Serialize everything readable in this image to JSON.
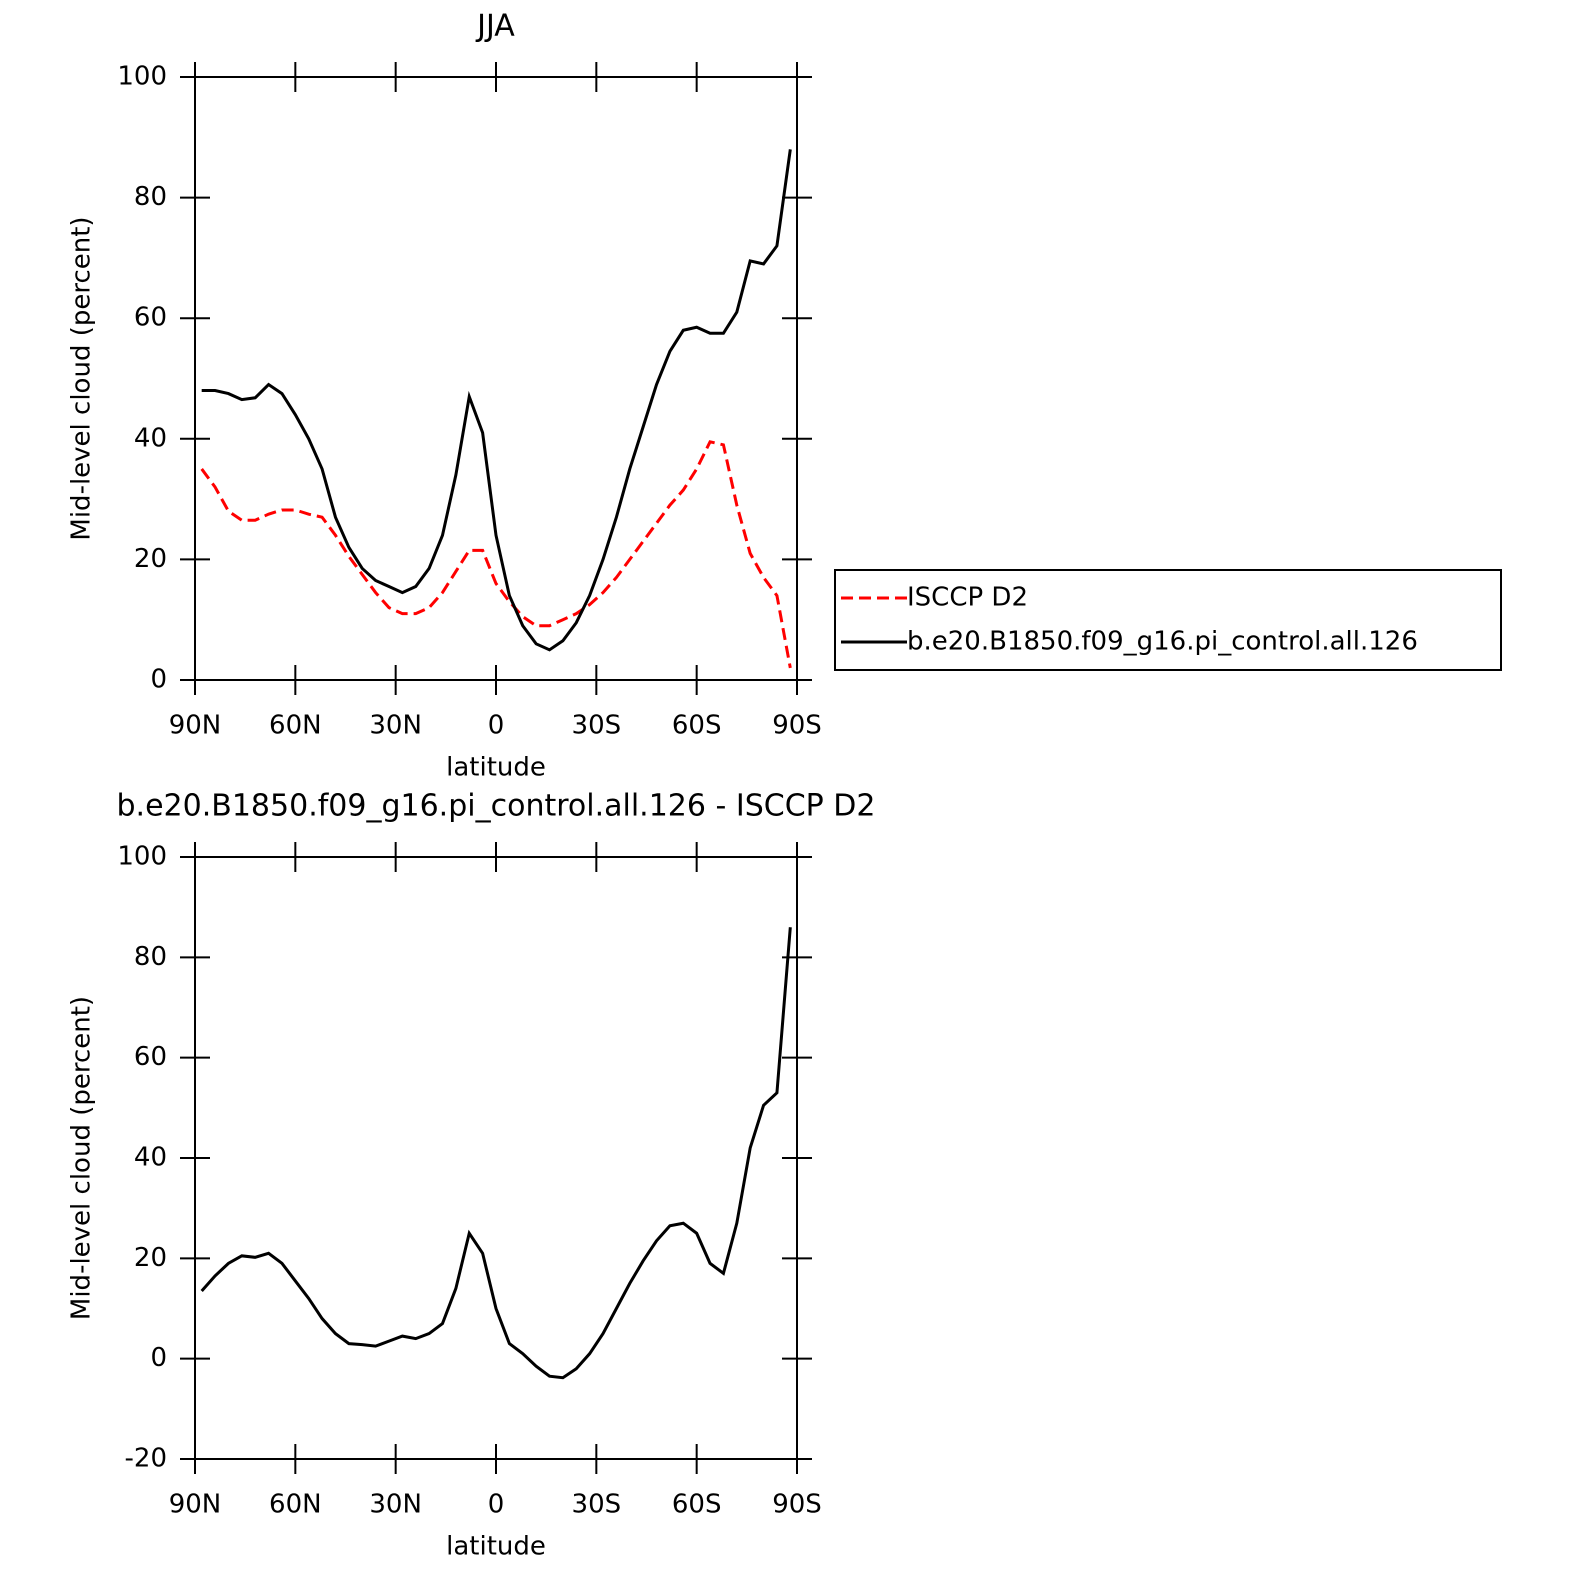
{
  "chart_data": [
    {
      "type": "line",
      "title": "JJA",
      "xlabel": "latitude",
      "ylabel": "Mid-level cloud (percent)",
      "x": [
        88,
        84,
        80,
        76,
        72,
        68,
        64,
        60,
        56,
        52,
        48,
        44,
        40,
        36,
        32,
        28,
        24,
        20,
        16,
        12,
        8,
        4,
        0,
        -4,
        -8,
        -12,
        -16,
        -20,
        -24,
        -28,
        -32,
        -36,
        -40,
        -44,
        -48,
        -52,
        -56,
        -60,
        -64,
        -68,
        -72,
        -76,
        -80,
        -84,
        -88
      ],
      "series": [
        {
          "name": "ISCCP D2",
          "color": "#ff0000",
          "dash": true,
          "values": [
            35,
            32,
            28,
            26.5,
            26.5,
            27.5,
            28.2,
            28.2,
            27.5,
            27,
            24,
            20.5,
            17.5,
            14.5,
            12,
            11,
            11,
            12,
            14.5,
            18,
            21.5,
            21.5,
            16,
            13,
            10.5,
            9,
            9,
            10,
            11,
            12.5,
            14.5,
            17,
            20,
            23,
            26,
            29,
            31.5,
            35,
            39.5,
            39,
            29,
            21,
            17,
            14,
            2
          ]
        },
        {
          "name": "b.e20.B1850.f09_g16.pi_control.all.126",
          "color": "#000000",
          "dash": false,
          "values": [
            48,
            48,
            47.5,
            46.5,
            46.8,
            49,
            47.5,
            44,
            40,
            35,
            27,
            22,
            18.5,
            16.5,
            15.5,
            14.5,
            15.5,
            18.5,
            24,
            34,
            47,
            41,
            24,
            14,
            9,
            6,
            5,
            6.5,
            9.5,
            14,
            20,
            27,
            35,
            42,
            49,
            54.5,
            58,
            58.5,
            57.5,
            57.5,
            61,
            69.5,
            69,
            72,
            88
          ]
        }
      ],
      "xlim": [
        90,
        -90
      ],
      "xticks": [
        {
          "value": 90,
          "label": "90N"
        },
        {
          "value": 60,
          "label": "60N"
        },
        {
          "value": 30,
          "label": "30N"
        },
        0,
        {
          "value": -30,
          "label": "30S"
        },
        {
          "value": -60,
          "label": "60S"
        },
        {
          "value": -90,
          "label": "90S"
        }
      ],
      "ylim": [
        0,
        100
      ],
      "yticks": [
        0,
        20,
        40,
        60,
        80,
        100
      ],
      "legend": "right"
    },
    {
      "type": "line",
      "title": "b.e20.B1850.f09_g16.pi_control.all.126 - ISCCP D2",
      "xlabel": "latitude",
      "ylabel": "Mid-level cloud (percent)",
      "x": [
        88,
        84,
        80,
        76,
        72,
        68,
        64,
        60,
        56,
        52,
        48,
        44,
        40,
        36,
        32,
        28,
        24,
        20,
        16,
        12,
        8,
        4,
        0,
        -4,
        -8,
        -12,
        -16,
        -20,
        -24,
        -28,
        -32,
        -36,
        -40,
        -44,
        -48,
        -52,
        -56,
        -60,
        -64,
        -68,
        -72,
        -76,
        -80,
        -84,
        -88
      ],
      "series": [
        {
          "color": "#000000",
          "dash": false,
          "values": [
            13.5,
            16.5,
            19,
            20.5,
            20.2,
            21,
            19,
            15.5,
            12,
            8,
            5,
            3,
            2.8,
            2.5,
            3.5,
            4.5,
            4,
            5,
            7,
            14,
            25,
            21,
            10,
            3,
            1,
            -1.5,
            -3.5,
            -3.8,
            -2,
            1,
            5,
            10,
            15,
            19.5,
            23.5,
            26.5,
            27,
            25,
            19,
            17,
            27,
            42,
            50.5,
            53,
            86
          ]
        }
      ],
      "xlim": [
        90,
        -90
      ],
      "xticks": [
        {
          "value": 90,
          "label": "90N"
        },
        {
          "value": 60,
          "label": "60N"
        },
        {
          "value": 30,
          "label": "30N"
        },
        0,
        {
          "value": -30,
          "label": "30S"
        },
        {
          "value": -60,
          "label": "60S"
        },
        {
          "value": -90,
          "label": "90S"
        }
      ],
      "ylim": [
        -20,
        100
      ],
      "yticks": [
        -20,
        0,
        20,
        40,
        60,
        80,
        100
      ]
    }
  ]
}
